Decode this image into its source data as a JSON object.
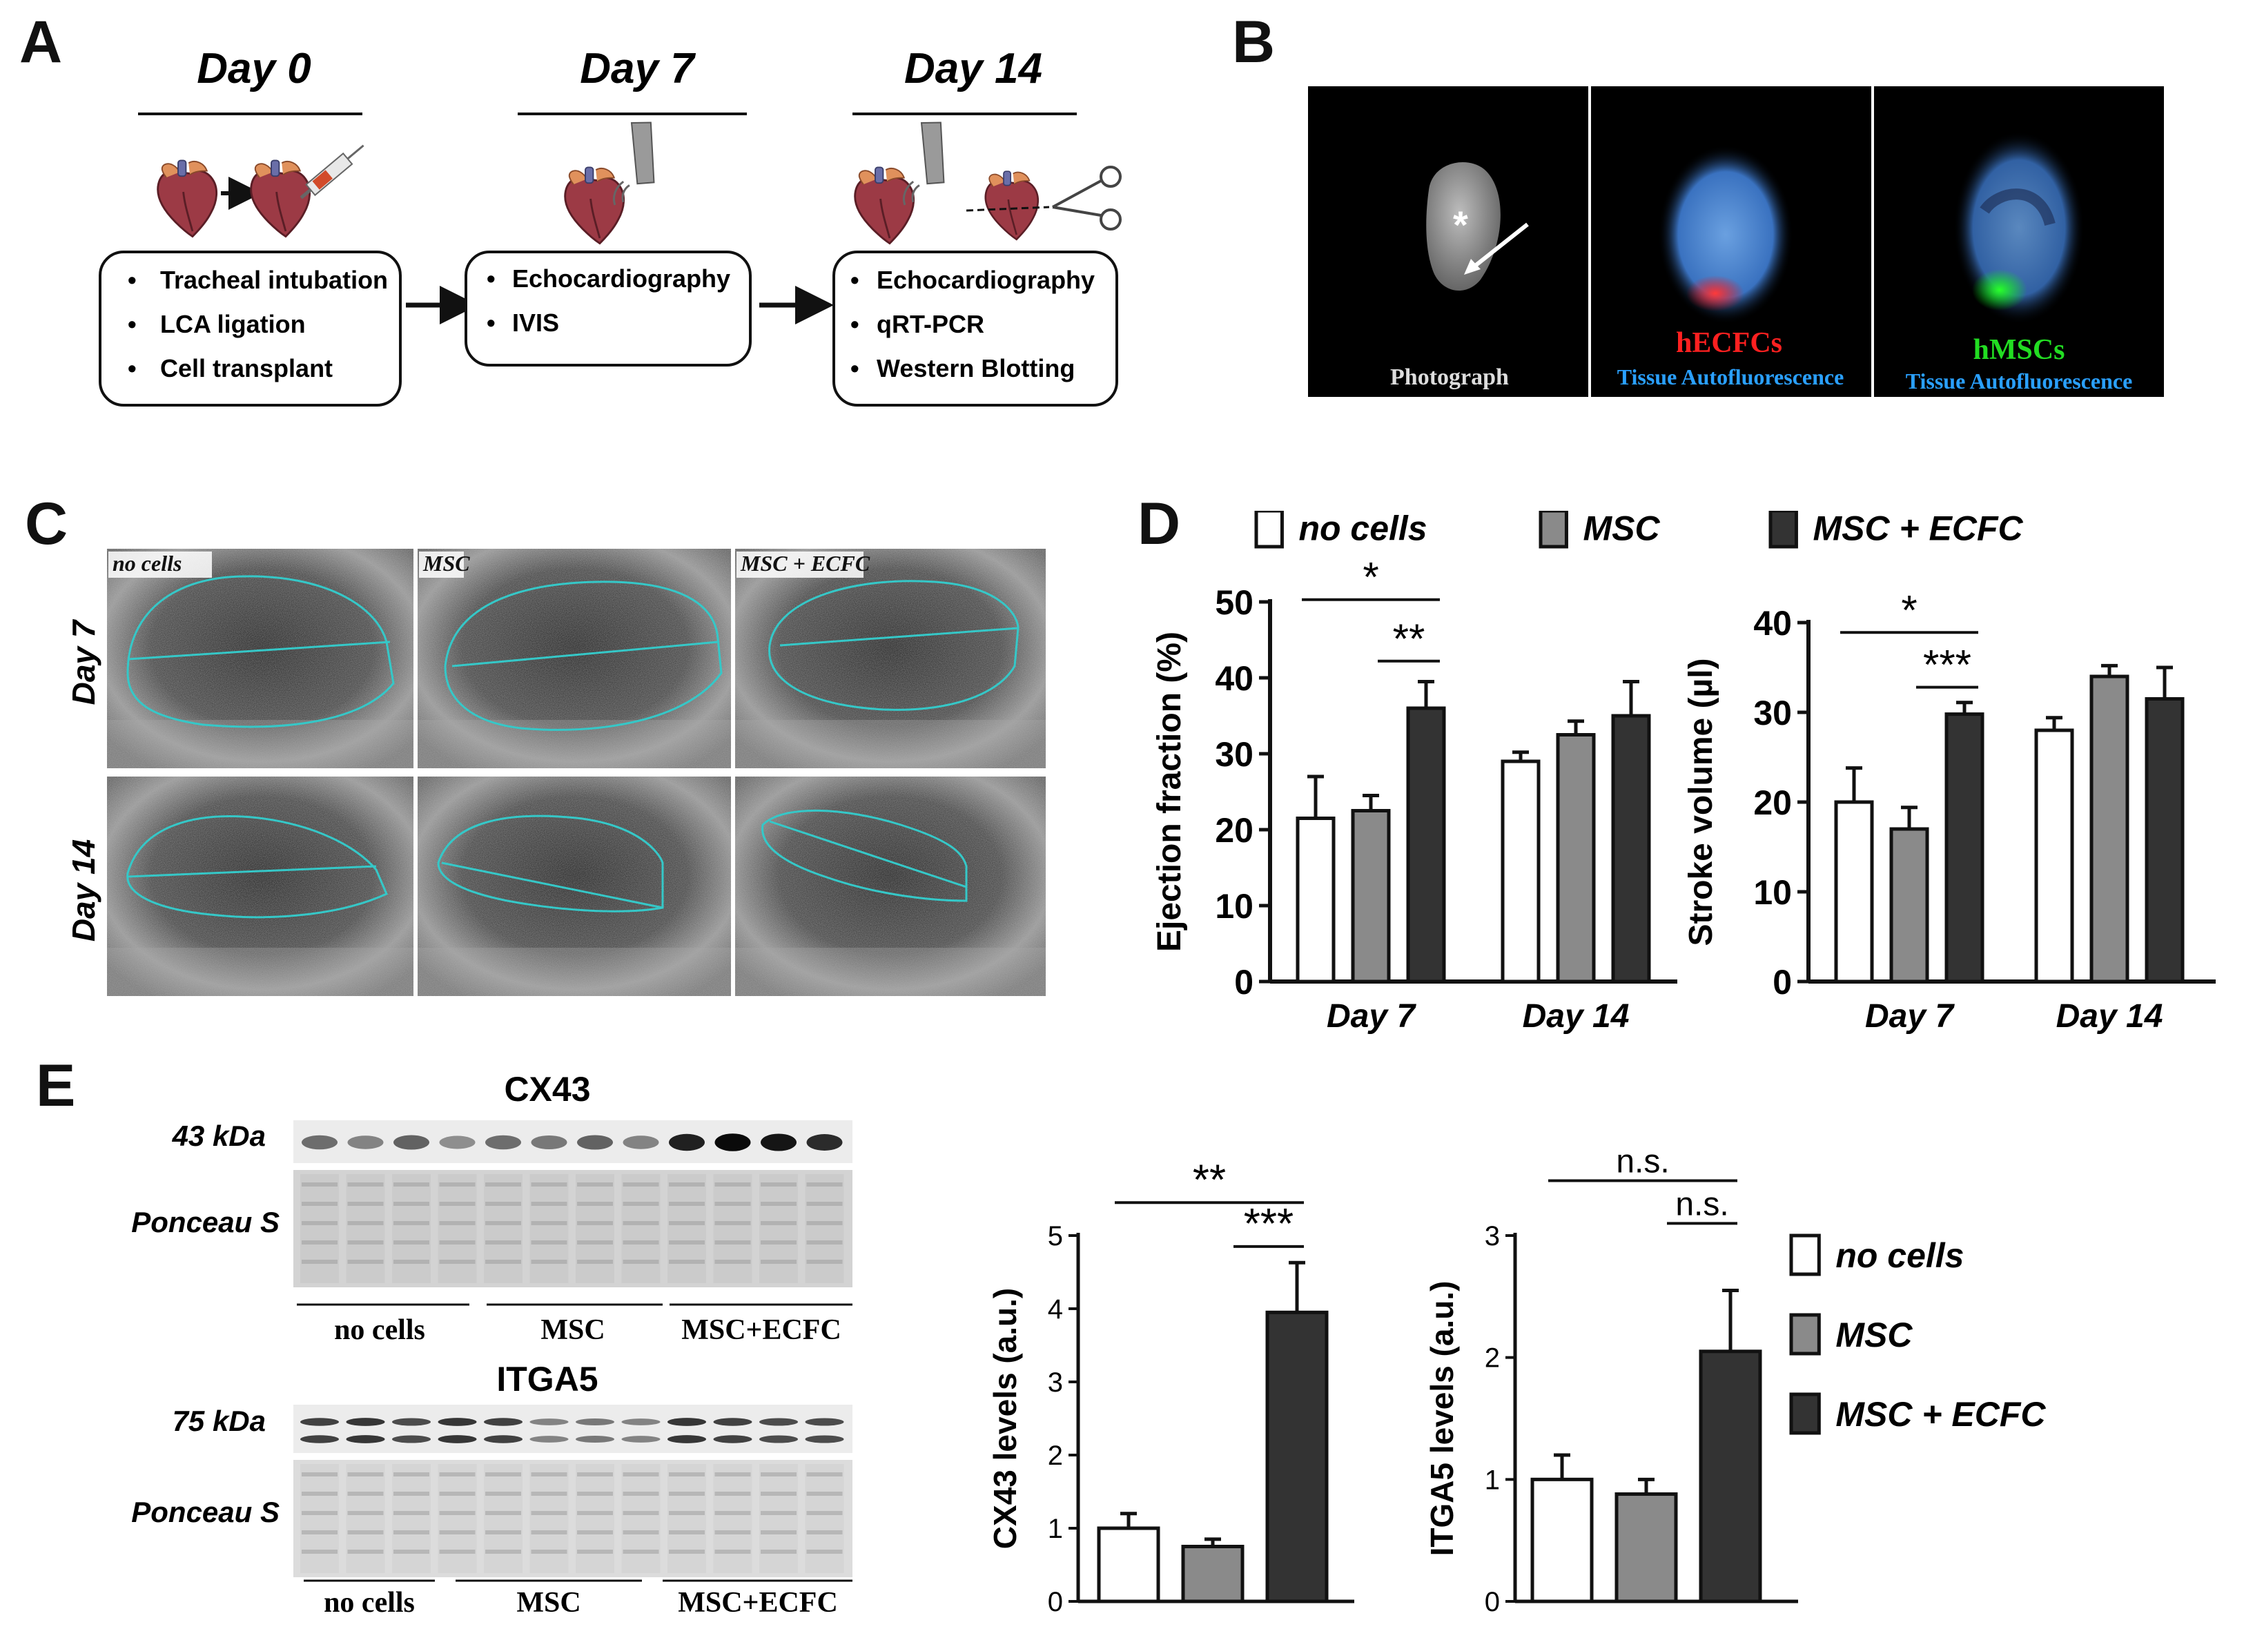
{
  "figure": {
    "panel_letters": [
      "A",
      "B",
      "C",
      "D",
      "E"
    ]
  },
  "panel_a": {
    "stages": [
      {
        "title": "Day 0",
        "items": [
          "Tracheal intubation",
          "LCA ligation",
          "Cell transplant"
        ]
      },
      {
        "title": "Day 7",
        "items": [
          "Echocardiography",
          "IVIS"
        ]
      },
      {
        "title": "Day 14",
        "items": [
          "Echocardiography",
          "qRT-PCR",
          "Western Blotting"
        ]
      }
    ]
  },
  "panel_b": {
    "images": [
      {
        "caption": "Photograph",
        "caption2": ""
      },
      {
        "caption": "hECFCs",
        "caption2": "Tissue Autofluorescence"
      },
      {
        "caption": "hMSCs",
        "caption2": "Tissue Autofluorescence"
      }
    ],
    "colors": {
      "hECFCs": "#ff2020",
      "hMSCs": "#22dd22",
      "autofluorescence": "#3a7fd0"
    }
  },
  "panel_c": {
    "columns": [
      "no cells",
      "MSC",
      "MSC + ECFC"
    ],
    "rows": [
      "Day 7",
      "Day 14"
    ],
    "trace_color": "#35c8c8"
  },
  "legend": {
    "items": [
      {
        "label": "no cells",
        "color": "#ffffff"
      },
      {
        "label": "MSC",
        "color": "#8a8a8a"
      },
      {
        "label": "MSC + ECFC",
        "color": "#333333"
      }
    ]
  },
  "chart_data": [
    {
      "type": "bar",
      "panel": "D",
      "ylabel": "Ejection fraction (%)",
      "ylim": [
        0,
        50
      ],
      "yticks": [
        "0",
        "10",
        "20",
        "30",
        "40",
        "50"
      ],
      "categories": [
        "Day 7",
        "Day 14"
      ],
      "series": [
        {
          "name": "no cells",
          "values": [
            21.5,
            29
          ],
          "errors": [
            5.5,
            1.2
          ]
        },
        {
          "name": "MSC",
          "values": [
            22.5,
            32.5
          ],
          "errors": [
            2,
            1.8
          ]
        },
        {
          "name": "MSC + ECFC",
          "values": [
            36,
            35
          ],
          "errors": [
            3.5,
            4.5
          ]
        }
      ],
      "annotations": [
        "*",
        "**"
      ]
    },
    {
      "type": "bar",
      "panel": "D",
      "ylabel": "Stroke volume (µl)",
      "ylim": [
        0,
        40
      ],
      "yticks": [
        "0",
        "10",
        "20",
        "30",
        "40"
      ],
      "categories": [
        "Day 7",
        "Day 14"
      ],
      "series": [
        {
          "name": "no cells",
          "values": [
            20,
            28
          ],
          "errors": [
            3.8,
            1.4
          ]
        },
        {
          "name": "MSC",
          "values": [
            17,
            34
          ],
          "errors": [
            2.4,
            1.2
          ]
        },
        {
          "name": "MSC + ECFC",
          "values": [
            29.8,
            31.5
          ],
          "errors": [
            1.3,
            3.5
          ]
        }
      ],
      "annotations": [
        "*",
        "***"
      ]
    },
    {
      "type": "bar",
      "panel": "E",
      "ylabel": "CX43 levels (a.u.)",
      "ylim": [
        0,
        5
      ],
      "yticks": [
        "0",
        "1",
        "2",
        "3",
        "4",
        "5"
      ],
      "categories": [
        "no cells",
        "MSC",
        "MSC + ECFC"
      ],
      "values": [
        1.0,
        0.75,
        3.95
      ],
      "errors": [
        0.2,
        0.1,
        0.68
      ],
      "annotations": [
        "**",
        "***"
      ]
    },
    {
      "type": "bar",
      "panel": "E",
      "ylabel": "ITGA5 levels (a.u.)",
      "ylim": [
        0,
        3
      ],
      "yticks": [
        "0",
        "1",
        "2",
        "3"
      ],
      "categories": [
        "no cells",
        "MSC",
        "MSC + ECFC"
      ],
      "values": [
        1.0,
        0.88,
        2.05
      ],
      "errors": [
        0.2,
        0.12,
        0.5
      ],
      "annotations": [
        "n.s.",
        "n.s."
      ]
    }
  ],
  "panel_e": {
    "cx43": {
      "title": "CX43",
      "band_label": "43 kDa",
      "loading_label": "Ponceau S",
      "groups": [
        "no cells",
        "MSC",
        "MSC+ECFC"
      ],
      "band_intensity": [
        0.55,
        0.45,
        0.6,
        0.4,
        0.55,
        0.5,
        0.6,
        0.45,
        0.9,
        1.0,
        0.95,
        0.85
      ]
    },
    "itga5": {
      "title": "ITGA5",
      "band_label": "75 kDa",
      "loading_label": "Ponceau S",
      "groups": [
        "no cells",
        "MSC",
        "MSC+ECFC"
      ],
      "band_intensity": [
        0.75,
        0.8,
        0.7,
        0.8,
        0.75,
        0.45,
        0.5,
        0.45,
        0.8,
        0.75,
        0.7,
        0.7
      ]
    }
  }
}
